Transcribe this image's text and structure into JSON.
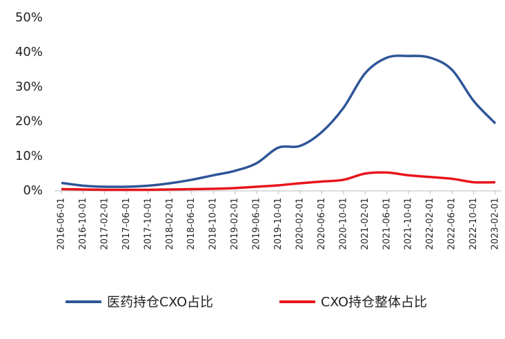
{
  "chart_data": {
    "type": "line",
    "categories": [
      "2016-06-01",
      "2016-10-01",
      "2017-02-01",
      "2017-06-01",
      "2017-10-01",
      "2018-02-01",
      "2018-06-01",
      "2018-10-01",
      "2019-02-01",
      "2019-06-01",
      "2019-10-01",
      "2020-02-01",
      "2020-06-01",
      "2020-10-01",
      "2021-02-01",
      "2021-06-01",
      "2021-10-01",
      "2022-02-01",
      "2022-06-01",
      "2022-10-01",
      "2023-02-01"
    ],
    "series": [
      {
        "name": "医药持仓CXO占比",
        "color": "#2f5597",
        "values": [
          2.3,
          1.5,
          1.2,
          1.2,
          1.5,
          2.2,
          3.2,
          4.5,
          5.8,
          8,
          12.5,
          13,
          17,
          24,
          34,
          38.5,
          39,
          38.5,
          35,
          26,
          19.5
        ]
      },
      {
        "name": "CXO持仓整体占比",
        "color": "#e8141b",
        "values": [
          0.5,
          0.4,
          0.3,
          0.3,
          0.3,
          0.4,
          0.5,
          0.6,
          0.8,
          1.2,
          1.6,
          2.2,
          2.7,
          3.2,
          5.0,
          5.3,
          4.5,
          4.0,
          3.5,
          2.5,
          2.5
        ]
      }
    ],
    "ylim": [
      0,
      50
    ],
    "yticks": [
      {
        "value": 0,
        "label": "0%"
      },
      {
        "value": 10,
        "label": "10%"
      },
      {
        "value": 20,
        "label": "20%"
      },
      {
        "value": 30,
        "label": "30%"
      },
      {
        "value": 40,
        "label": "40%"
      },
      {
        "value": 50,
        "label": "50%"
      }
    ],
    "legend": "bottom"
  }
}
